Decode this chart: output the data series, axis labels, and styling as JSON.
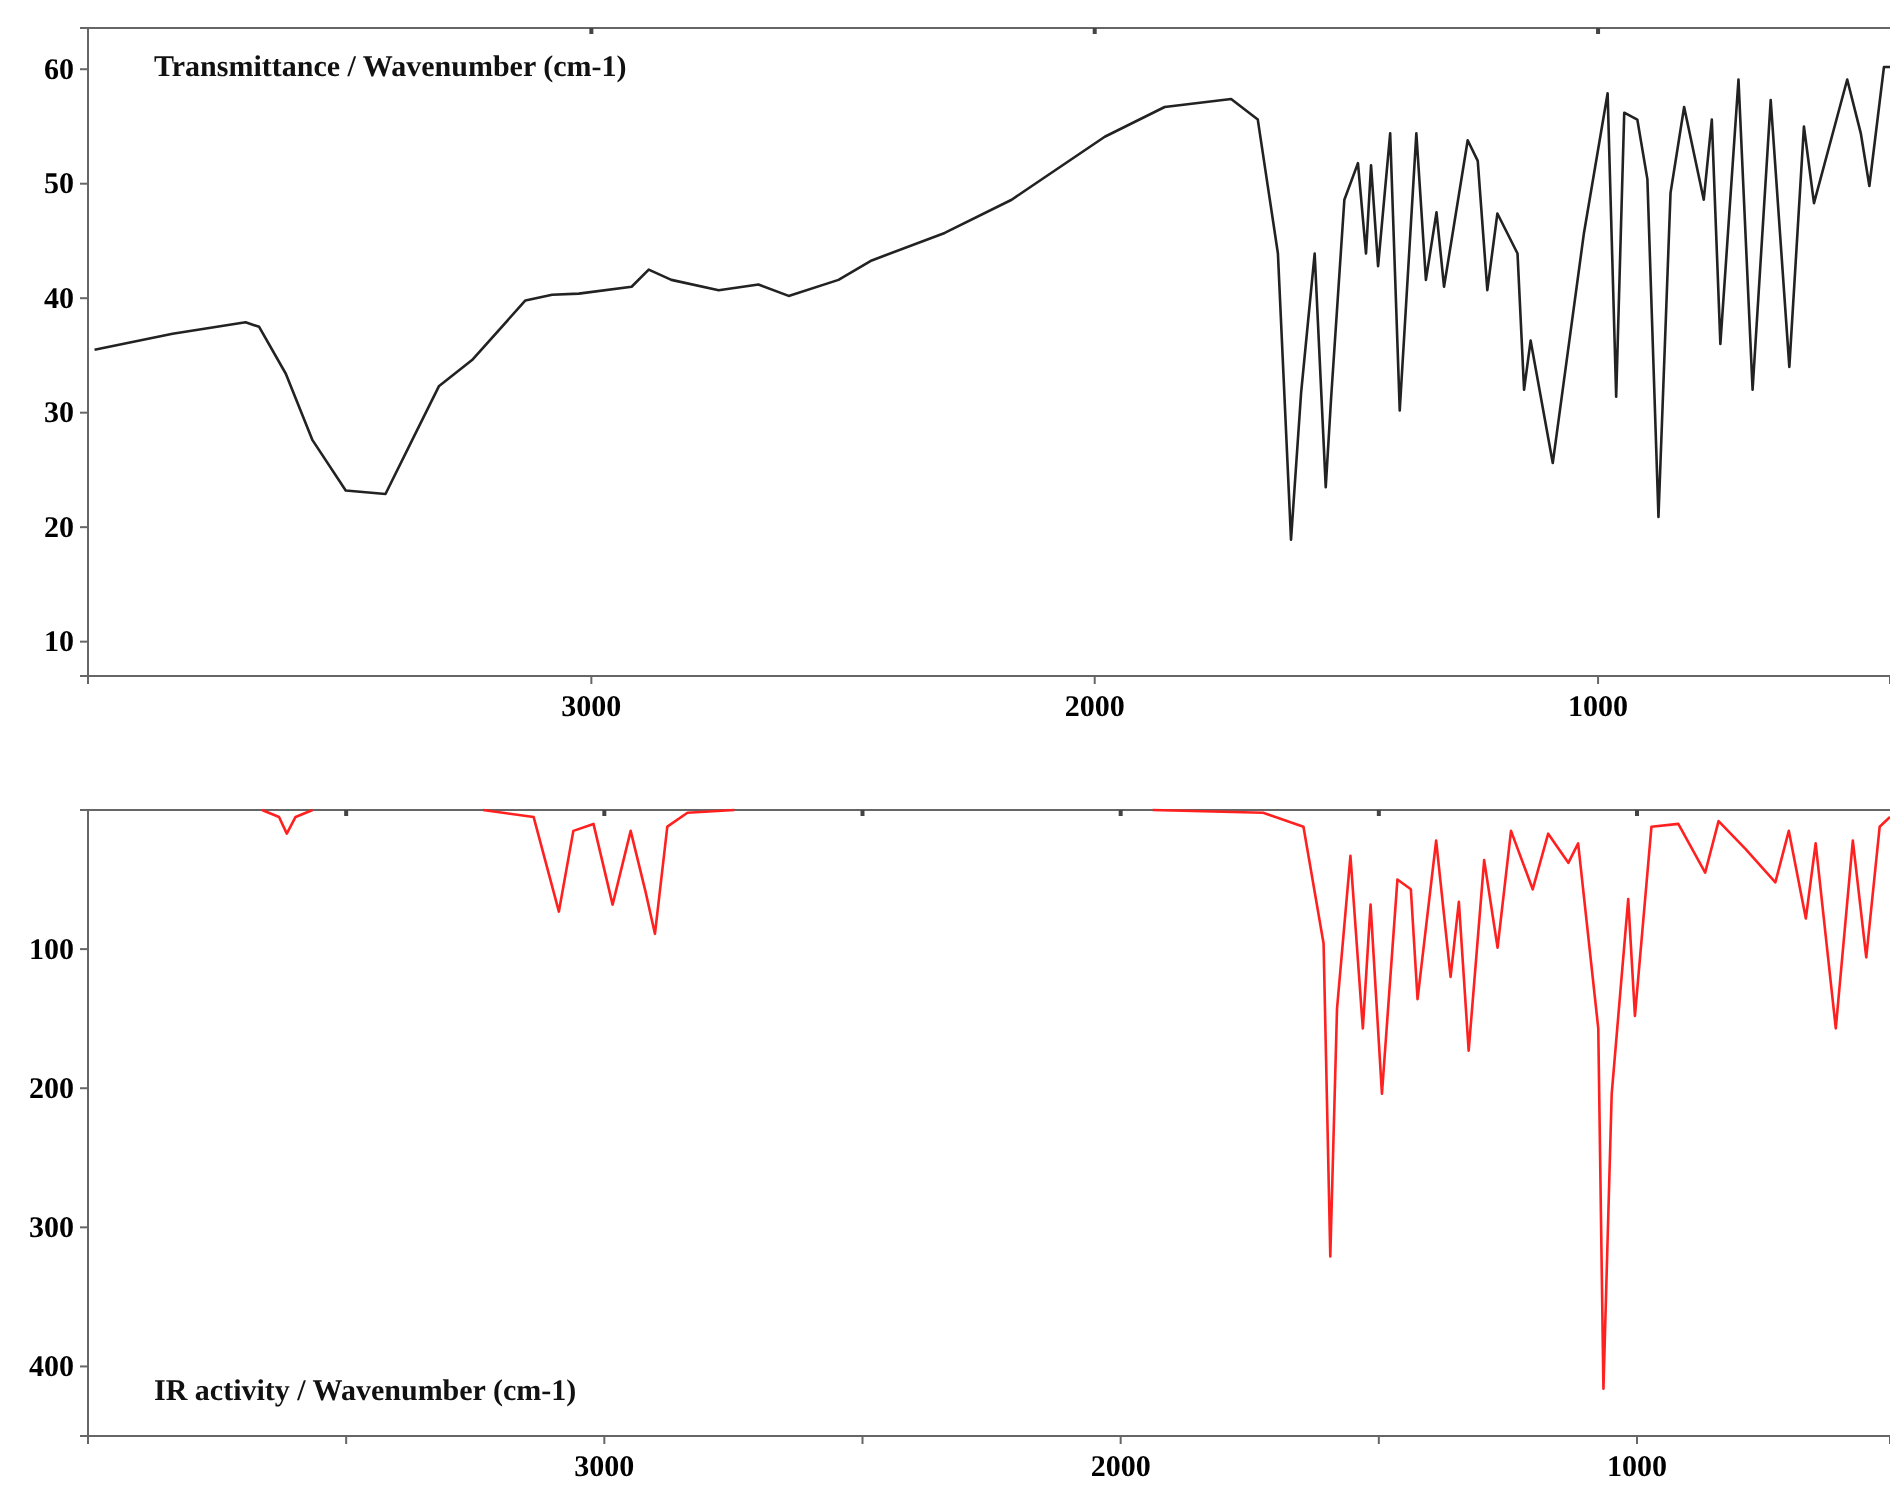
{
  "chart_data": [
    {
      "type": "line",
      "title": "Transmittance / Wavenumber (cm-1)",
      "xlim": [
        4000,
        420
      ],
      "xticks": [
        3000,
        2000,
        1000
      ],
      "ylim": [
        7,
        63.6
      ],
      "yticks": [
        10,
        20,
        30,
        40,
        50,
        60
      ],
      "x": [
        3987,
        3832,
        3687,
        3660,
        3607,
        3554,
        3488,
        3409,
        3356,
        3303,
        3237,
        3131,
        3078,
        3025,
        2920,
        2886,
        2841,
        2747,
        2668,
        2608,
        2509,
        2443,
        2298,
        2165,
        1980,
        1861,
        1729,
        1676,
        1636,
        1610,
        1590,
        1563,
        1541,
        1530,
        1504,
        1477,
        1461,
        1451,
        1437,
        1413,
        1394,
        1361,
        1342,
        1321,
        1306,
        1259,
        1239,
        1220,
        1200,
        1160,
        1147,
        1134,
        1090,
        1028,
        981,
        964,
        948,
        922,
        902,
        880,
        856,
        829,
        790,
        774,
        757,
        721,
        693,
        657,
        620,
        591,
        571,
        505,
        478,
        461,
        432,
        420
      ],
      "series": [
        {
          "color": "#222222",
          "values": [
            35.5,
            36.9,
            37.9,
            37.5,
            33.4,
            27.6,
            23.2,
            22.9,
            27.6,
            32.3,
            34.6,
            39.8,
            40.3,
            40.4,
            41.0,
            42.5,
            41.6,
            40.7,
            41.2,
            40.2,
            41.6,
            43.3,
            45.7,
            48.6,
            54.1,
            56.7,
            57.4,
            55.6,
            43.9,
            18.9,
            31.7,
            43.9,
            23.5,
            31.5,
            48.6,
            51.8,
            43.9,
            51.6,
            42.8,
            54.4,
            30.2,
            54.4,
            41.6,
            47.5,
            41.0,
            53.8,
            52.0,
            40.7,
            47.4,
            43.9,
            32.0,
            36.3,
            25.6,
            45.7,
            57.9,
            31.4,
            56.2,
            55.6,
            50.4,
            20.9,
            49.2,
            56.7,
            48.6,
            55.6,
            36.0,
            59.1,
            32.0,
            57.3,
            34.0,
            55.0,
            48.3,
            59.1,
            54.4,
            49.8,
            60.2,
            60.2
          ]
        }
      ]
    },
    {
      "type": "line",
      "title": "IR activity / Wavenumber (cm-1)",
      "xlim": [
        4000,
        510
      ],
      "xticks": [
        {
          "value": 3500,
          "label": null
        },
        3000,
        {
          "value": 2500,
          "label": null
        },
        2000,
        {
          "value": 1500,
          "label": null
        },
        1000
      ],
      "ylim": [
        450,
        0
      ],
      "yticks": [
        100,
        200,
        300,
        400
      ],
      "x": [
        3663,
        3630,
        3615,
        3598,
        3565,
        3400,
        3235,
        3137,
        3088,
        3060,
        3021,
        2984,
        2949,
        2920,
        2902,
        2878,
        2839,
        2748,
        2300,
        1938,
        1724,
        1646,
        1607,
        1594,
        1581,
        1555,
        1531,
        1516,
        1494,
        1464,
        1438,
        1425,
        1389,
        1361,
        1345,
        1326,
        1296,
        1270,
        1244,
        1202,
        1172,
        1133,
        1114,
        1075,
        1065,
        1049,
        1017,
        1004,
        972,
        920,
        868,
        842,
        790,
        732,
        706,
        673,
        654,
        615,
        582,
        556,
        530,
        510
      ],
      "series": [
        {
          "color": "#ff2020",
          "values": [
            0,
            5,
            17,
            5,
            0,
            null,
            0,
            5,
            73,
            15,
            10,
            68,
            15,
            59,
            89,
            12,
            2,
            0,
            null,
            0,
            2,
            12,
            96,
            321,
            143,
            33,
            157,
            68,
            204,
            50,
            57,
            136,
            22,
            120,
            66,
            173,
            36,
            99,
            15,
            57,
            17,
            38,
            24,
            157,
            416,
            204,
            64,
            148,
            12,
            10,
            45,
            8,
            28,
            52,
            15,
            78,
            24,
            157,
            22,
            106,
            12,
            5
          ]
        }
      ]
    }
  ]
}
